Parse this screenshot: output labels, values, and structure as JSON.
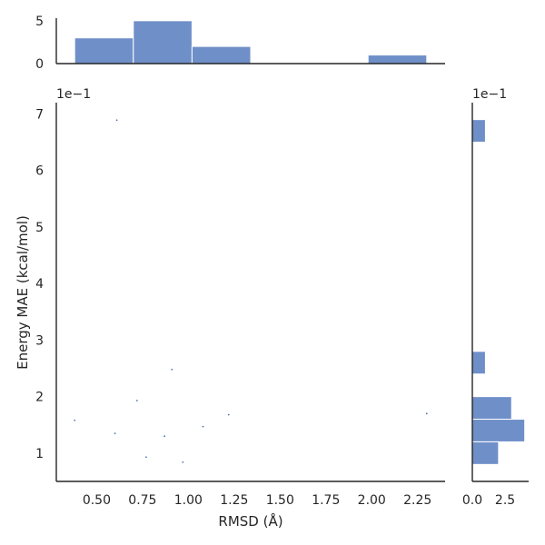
{
  "chart_data": {
    "type": "scatter",
    "xlabel": "RMSD (Å)",
    "ylabel": "Energy MAE (kcal/mol)",
    "y_offset_label": "1e−1",
    "right_offset_label": "1e−1",
    "grid": false,
    "colors": {
      "bar": "#6f8fc8",
      "point": "#4c72b0",
      "axis": "#262626"
    },
    "main": {
      "xlim": [
        0.28,
        2.4
      ],
      "ylim": [
        0.05,
        0.72
      ],
      "x_ticks": [
        0.5,
        0.75,
        1.0,
        1.25,
        1.5,
        1.75,
        2.0,
        2.25
      ],
      "x_tick_labels": [
        "0.50",
        "0.75",
        "1.00",
        "1.25",
        "1.50",
        "1.75",
        "2.00",
        "2.25"
      ],
      "y_ticks": [
        0.1,
        0.2,
        0.3,
        0.4,
        0.5,
        0.6,
        0.7
      ],
      "y_tick_labels": [
        "1",
        "2",
        "3",
        "4",
        "5",
        "6",
        "7"
      ],
      "points": [
        {
          "x": 0.61,
          "y": 0.689
        },
        {
          "x": 0.91,
          "y": 0.248
        },
        {
          "x": 0.72,
          "y": 0.193
        },
        {
          "x": 0.38,
          "y": 0.158
        },
        {
          "x": 0.6,
          "y": 0.135
        },
        {
          "x": 0.77,
          "y": 0.093
        },
        {
          "x": 0.87,
          "y": 0.13
        },
        {
          "x": 0.97,
          "y": 0.084
        },
        {
          "x": 1.08,
          "y": 0.147
        },
        {
          "x": 1.22,
          "y": 0.168
        },
        {
          "x": 2.3,
          "y": 0.17
        }
      ]
    },
    "top_histogram": {
      "ylim": [
        0,
        5.3
      ],
      "y_ticks": [
        0,
        5
      ],
      "y_tick_labels": [
        "0",
        "5"
      ],
      "bins": [
        {
          "x0": 0.38,
          "x1": 0.7,
          "count": 3
        },
        {
          "x0": 0.7,
          "x1": 1.02,
          "count": 5
        },
        {
          "x0": 1.02,
          "x1": 1.34,
          "count": 2
        },
        {
          "x0": 1.34,
          "x1": 1.66,
          "count": 0
        },
        {
          "x0": 1.66,
          "x1": 1.98,
          "count": 0
        },
        {
          "x0": 1.98,
          "x1": 2.3,
          "count": 1
        }
      ]
    },
    "right_histogram": {
      "xlim": [
        0,
        4.3
      ],
      "x_ticks": [
        0.0,
        2.5
      ],
      "x_tick_labels": [
        "0.0",
        "2.5"
      ],
      "bins": [
        {
          "y0": 0.65,
          "y1": 0.69,
          "count": 1
        },
        {
          "y0": 0.24,
          "y1": 0.28,
          "count": 1
        },
        {
          "y0": 0.16,
          "y1": 0.2,
          "count": 3
        },
        {
          "y0": 0.12,
          "y1": 0.16,
          "count": 4
        },
        {
          "y0": 0.08,
          "y1": 0.12,
          "count": 2
        }
      ]
    }
  }
}
